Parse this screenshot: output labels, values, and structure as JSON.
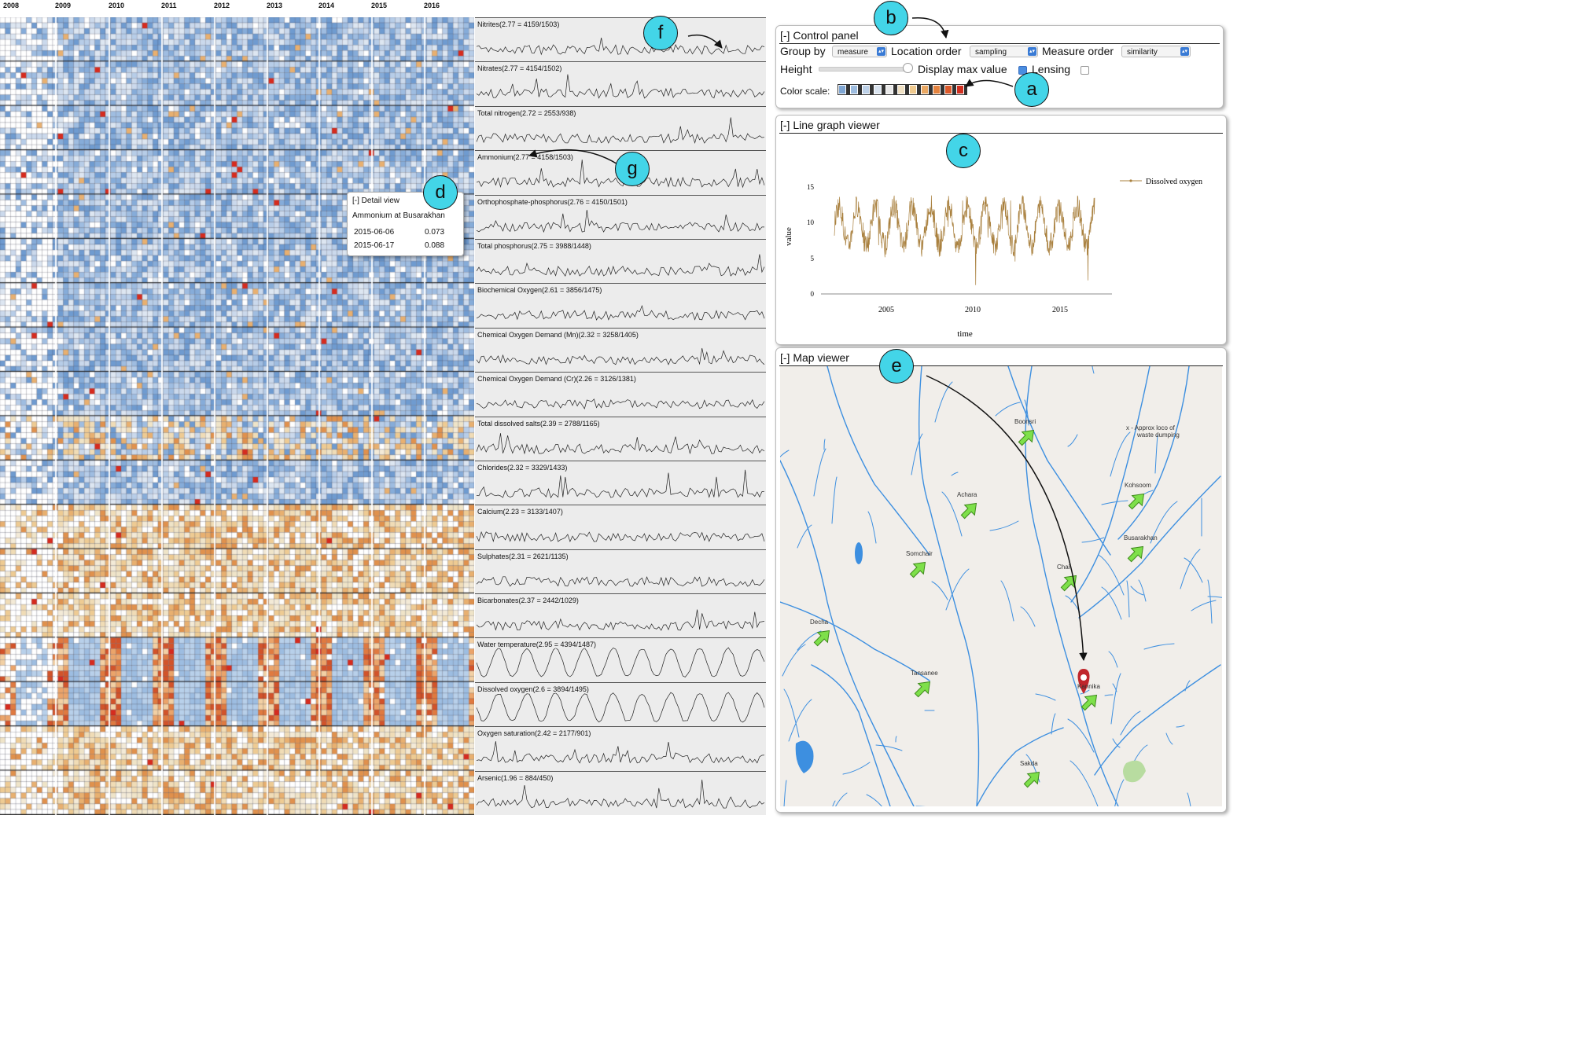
{
  "years": [
    "2008",
    "2009",
    "2010",
    "2011",
    "2012",
    "2013",
    "2014",
    "2015",
    "2016"
  ],
  "measures": [
    {
      "label": "Nitrites(2.77 = 4159/1503)",
      "palette": "blue",
      "seed": 3,
      "periodic": false
    },
    {
      "label": "Nitrates(2.77 = 4154/1502)",
      "palette": "blue",
      "seed": 5,
      "periodic": false
    },
    {
      "label": "Total nitrogen(2.72 = 2553/938)",
      "palette": "blue",
      "seed": 7,
      "periodic": false
    },
    {
      "label": "Ammonium(2.77 = 4158/1503)",
      "palette": "blue",
      "seed": 11,
      "periodic": false
    },
    {
      "label": "Orthophosphate-phosphorus(2.76 = 4150/1501)",
      "palette": "blue",
      "seed": 13,
      "periodic": false
    },
    {
      "label": "Total phosphorus(2.75 = 3988/1448)",
      "palette": "blue",
      "seed": 17,
      "periodic": false
    },
    {
      "label": "Biochemical Oxygen(2.61 = 3856/1475)",
      "palette": "blue",
      "seed": 19,
      "periodic": false
    },
    {
      "label": "Chemical Oxygen Demand (Mn)(2.32 = 3258/1405)",
      "palette": "blue",
      "seed": 23,
      "periodic": false
    },
    {
      "label": "Chemical Oxygen Demand (Cr)(2.26 = 3126/1381)",
      "palette": "blue",
      "seed": 29,
      "periodic": false
    },
    {
      "label": "Total dissolved salts(2.39 = 2788/1165)",
      "palette": "mixed",
      "seed": 31,
      "periodic": false
    },
    {
      "label": "Chlorides(2.32 = 3329/1433)",
      "palette": "blue",
      "seed": 37,
      "periodic": false
    },
    {
      "label": "Calcium(2.23 = 3133/1407)",
      "palette": "orange",
      "seed": 41,
      "periodic": false
    },
    {
      "label": "Sulphates(2.31 = 2621/1135)",
      "palette": "orange",
      "seed": 43,
      "periodic": false
    },
    {
      "label": "Bicarbonates(2.37 = 2442/1029)",
      "palette": "orange",
      "seed": 47,
      "periodic": false
    },
    {
      "label": "Water temperature(2.95 = 4394/1487)",
      "palette": "hot",
      "seed": 53,
      "periodic": true
    },
    {
      "label": "Dissolved oxygen(2.6 = 3894/1495)",
      "palette": "hot",
      "seed": 59,
      "periodic": true
    },
    {
      "label": "Oxygen saturation(2.42 = 2177/901)",
      "palette": "orange",
      "seed": 61,
      "periodic": false
    },
    {
      "label": "Arsenic(1.96 = 884/450)",
      "palette": "orange",
      "seed": 67,
      "periodic": false
    }
  ],
  "control_panel": {
    "title": "[-] Control panel",
    "group_by_label": "Group by",
    "group_by_value": "measure",
    "location_order_label": "Location order",
    "location_order_value": "sampling",
    "measure_order_label": "Measure order",
    "measure_order_value": "similarity",
    "height_label": "Height",
    "display_max_label": "Display max value",
    "display_max_checked": true,
    "lensing_label": "Lensing",
    "lensing_checked": false,
    "color_scale_label": "Color scale:",
    "color_scale": [
      "#7fa6d3",
      "#9dbcdf",
      "#bdd1e8",
      "#d9e3ef",
      "#e9e9e9",
      "#f0e1c4",
      "#efc98e",
      "#eaa863",
      "#e4833f",
      "#dc5a2b",
      "#d13021"
    ]
  },
  "line_graph": {
    "title": "[-] Line graph viewer",
    "ylabel": "value",
    "xlabel": "time",
    "legend": "Dissolved oxygen",
    "y_ticks": [
      "0",
      "5",
      "10",
      "15"
    ],
    "x_ticks": [
      "2005",
      "2010",
      "2015"
    ],
    "color": "#a9803e"
  },
  "map": {
    "title": "[-] Map viewer",
    "note_line1": "x - Approx loco of",
    "note_line2": "waste dumping",
    "stations": [
      "Boonsri",
      "Achara",
      "Kohsoom",
      "Busarakhan",
      "Somchair",
      "Chai",
      "Decha",
      "Tansanee",
      "Kannika",
      "Sakda"
    ]
  },
  "detail": {
    "title": "[-] Detail view",
    "subtitle": "Ammonium at Busarakhan",
    "rows": [
      {
        "date": "2015-06-06",
        "value": "0.073"
      },
      {
        "date": "2015-06-17",
        "value": "0.088"
      }
    ]
  },
  "callouts": {
    "a": "a",
    "b": "b",
    "c": "c",
    "d": "d",
    "e": "e",
    "f": "f",
    "g": "g"
  }
}
